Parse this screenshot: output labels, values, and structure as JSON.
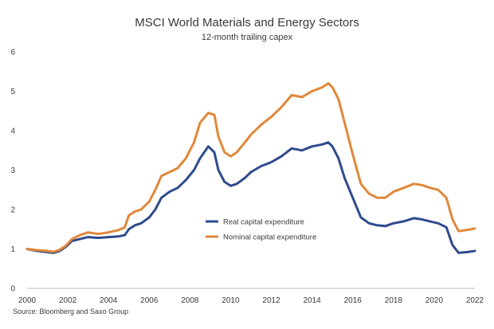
{
  "chart_data": {
    "type": "line",
    "title": "MSCI World Materials and Energy Sectors",
    "subtitle": "12-month trailing capex",
    "source": "Source: Bloomberg and Saxo Group",
    "xlabel": "",
    "ylabel": "",
    "xlim": [
      2000,
      2022
    ],
    "ylim": [
      0,
      6
    ],
    "x_ticks": [
      "2000",
      "2002",
      "2004",
      "2006",
      "2008",
      "2010",
      "2012",
      "2014",
      "2016",
      "2018",
      "2020",
      "2022"
    ],
    "y_ticks": [
      "0",
      "1",
      "2",
      "3",
      "4",
      "5",
      "6"
    ],
    "grid": false,
    "legend": "center",
    "series": [
      {
        "name": "Real capital expenditure",
        "color": "#2f4b8c",
        "x": [
          2000,
          2000.5,
          2001,
          2001.3,
          2001.6,
          2001.9,
          2002.2,
          2002.6,
          2003.0,
          2003.5,
          2004.0,
          2004.5,
          2004.8,
          2005.0,
          2005.3,
          2005.6,
          2006.0,
          2006.3,
          2006.6,
          2007.0,
          2007.4,
          2007.8,
          2008.2,
          2008.5,
          2008.9,
          2009.2,
          2009.4,
          2009.7,
          2010.0,
          2010.3,
          2010.7,
          2011.0,
          2011.5,
          2012.0,
          2012.5,
          2013.0,
          2013.5,
          2014.0,
          2014.5,
          2014.8,
          2015.0,
          2015.3,
          2015.6,
          2016.0,
          2016.4,
          2016.8,
          2017.2,
          2017.6,
          2018.0,
          2018.5,
          2019.0,
          2019.4,
          2019.8,
          2020.2,
          2020.6,
          2020.9,
          2021.2,
          2021.6,
          2022.0
        ],
        "y": [
          1.0,
          0.95,
          0.92,
          0.9,
          0.95,
          1.05,
          1.2,
          1.25,
          1.3,
          1.28,
          1.3,
          1.32,
          1.35,
          1.5,
          1.6,
          1.65,
          1.8,
          2.0,
          2.3,
          2.45,
          2.55,
          2.75,
          3.0,
          3.3,
          3.6,
          3.45,
          3.0,
          2.7,
          2.6,
          2.65,
          2.8,
          2.95,
          3.1,
          3.2,
          3.35,
          3.55,
          3.5,
          3.6,
          3.65,
          3.7,
          3.6,
          3.3,
          2.8,
          2.3,
          1.8,
          1.65,
          1.6,
          1.58,
          1.65,
          1.7,
          1.78,
          1.75,
          1.7,
          1.65,
          1.55,
          1.1,
          0.9,
          0.92,
          0.95
        ]
      },
      {
        "name": "Nominal capital expenditure",
        "color": "#e0883a",
        "x": [
          2000,
          2000.5,
          2001,
          2001.3,
          2001.6,
          2001.9,
          2002.2,
          2002.6,
          2003.0,
          2003.5,
          2004.0,
          2004.5,
          2004.8,
          2005.0,
          2005.3,
          2005.6,
          2006.0,
          2006.3,
          2006.6,
          2007.0,
          2007.4,
          2007.8,
          2008.2,
          2008.5,
          2008.9,
          2009.2,
          2009.4,
          2009.7,
          2010.0,
          2010.3,
          2010.7,
          2011.0,
          2011.5,
          2012.0,
          2012.5,
          2013.0,
          2013.5,
          2014.0,
          2014.5,
          2014.8,
          2015.0,
          2015.3,
          2015.6,
          2016.0,
          2016.4,
          2016.8,
          2017.2,
          2017.6,
          2018.0,
          2018.5,
          2019.0,
          2019.4,
          2019.8,
          2020.2,
          2020.6,
          2020.9,
          2021.2,
          2021.6,
          2022.0
        ],
        "y": [
          1.0,
          0.97,
          0.95,
          0.93,
          0.98,
          1.08,
          1.25,
          1.35,
          1.42,
          1.38,
          1.42,
          1.48,
          1.55,
          1.85,
          1.95,
          2.0,
          2.2,
          2.5,
          2.85,
          2.95,
          3.05,
          3.3,
          3.7,
          4.2,
          4.45,
          4.4,
          3.85,
          3.45,
          3.35,
          3.45,
          3.7,
          3.9,
          4.15,
          4.35,
          4.6,
          4.9,
          4.85,
          5.0,
          5.1,
          5.2,
          5.1,
          4.8,
          4.2,
          3.4,
          2.65,
          2.4,
          2.3,
          2.3,
          2.45,
          2.55,
          2.65,
          2.62,
          2.55,
          2.5,
          2.3,
          1.75,
          1.45,
          1.48,
          1.52
        ]
      }
    ]
  }
}
